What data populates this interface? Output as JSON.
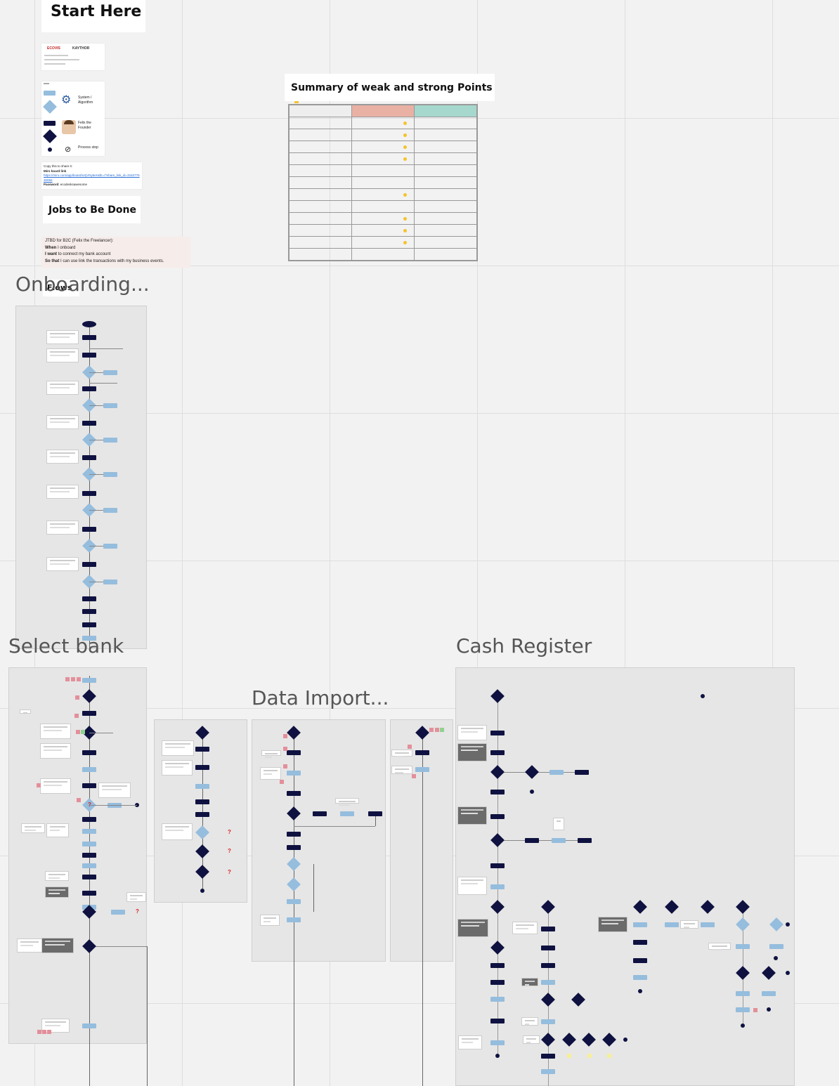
{
  "start_here": {
    "title": "Start Here"
  },
  "logo_card": {
    "logo_left": "ECOVIS",
    "logo_right": "KAYTHOR"
  },
  "legend": {
    "system_label": "System / Algorithm",
    "persona_label": "Felix the Founder",
    "process_stop_label": "Process stop"
  },
  "share": {
    "intro": "Copy this to share it:",
    "board_link_label": "Miro board link",
    "board_link": "https://miro.com/app/board/uXjVNy6eHdE=/?share_link_id=316277530055",
    "password_label": "Password",
    "password_value": "ecodesksawesome"
  },
  "jobs": {
    "title": "Jobs to Be Done",
    "line1": "JTBD  for B2C (Felix the Freelancer):",
    "when_label": "When",
    "when_text": " I onboard",
    "want_label": "I want",
    "want_text": " to connect my bank account",
    "sothat_label": "So that",
    "sothat_text": " I can use link the transactions with my business events."
  },
  "flows_label": "Flows",
  "summary": {
    "title": "Summary of weak and strong Points",
    "colors": {
      "weak": "#e9b1a4",
      "strong": "#a6d8cd",
      "note": "#f5c32c"
    },
    "row_count": 13,
    "weak_note_rows": [
      1,
      2,
      3,
      4,
      7,
      9,
      10,
      11
    ]
  },
  "frames": {
    "onboarding": "Onboarding...",
    "select_bank": "Select bank",
    "data_import": "Data Import...",
    "cash_register": "Cash Register"
  },
  "flow_marks": {
    "question": "?"
  },
  "colors": {
    "navy": "#0f1240",
    "light_blue": "#95bddd",
    "pink": "#e38f9a",
    "canvas": "#f2f2f2",
    "frame": "#e6e6e6"
  }
}
